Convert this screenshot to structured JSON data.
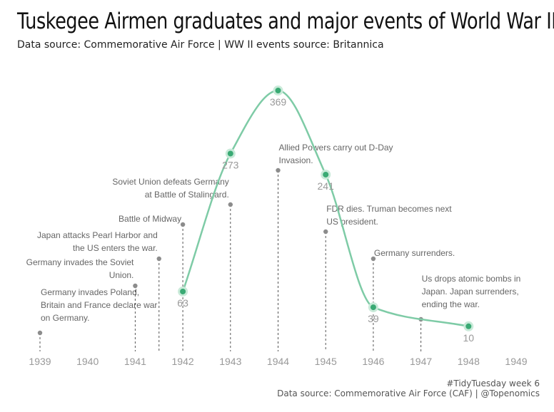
{
  "header": {
    "title": "Tuskegee Airmen graduates and major events of World War II",
    "subtitle": "Data source: Commemorative Air Force | WW II events source: Britannica"
  },
  "caption": {
    "line1": "#TidyTuesday week 6",
    "line2": "Data source: Commemorative Air Force (CAF) | @Topenomics"
  },
  "colors": {
    "line": "#7ecba6",
    "point": "#3aaa74",
    "halo": "#c9ead9",
    "event": "#8c8c8c",
    "axis_text": "#999999",
    "event_text": "#666666"
  },
  "chart_data": {
    "type": "line",
    "title": "Tuskegee Airmen graduates and major events of World War II",
    "subtitle": "Data source: Commemorative Air Force | WW II events source: Britannica",
    "xlim": [
      1939,
      1949
    ],
    "x_ticks": [
      "1939",
      "1940",
      "1941",
      "1942",
      "1943",
      "1944",
      "1945",
      "1946",
      "1947",
      "1948",
      "1949"
    ],
    "ylim": [
      0,
      380
    ],
    "grid": false,
    "series": [
      {
        "x": [
          1942,
          1943,
          1944,
          1945,
          1946,
          1948
        ],
        "values": [
          63,
          273,
          369,
          241,
          39,
          10
        ],
        "labels": [
          "63",
          "273",
          "369",
          "241",
          "39",
          "10"
        ]
      }
    ],
    "events": [
      {
        "x": 1939,
        "text": "Germany invades Poland, Britain and France declare war on Germany.",
        "lines": [
          "Germany invades Poland,",
          "Britain and France declare war",
          "on Germany."
        ],
        "align": "start"
      },
      {
        "x": 1941,
        "text": "Germany invades the Soviet Union.",
        "lines": [
          "Germany invades the Soviet",
          "Union."
        ],
        "align": "end"
      },
      {
        "x": 1941.5,
        "text": "Japan attacks Pearl Harbor and the US enters the war.",
        "lines": [
          "Japan attacks Pearl Harbor and",
          "the US enters the war."
        ],
        "align": "end"
      },
      {
        "x": 1942,
        "text": "Battle of Midway",
        "lines": [
          "Battle of Midway"
        ],
        "align": "end"
      },
      {
        "x": 1943,
        "text": "Soviet Union defeats Germany at Battle of Stalingard.",
        "lines": [
          "Soviet Union defeats Germany",
          "at Battle of Stalingard."
        ],
        "align": "end"
      },
      {
        "x": 1944,
        "text": "Allied Powers carry out D-Day Invasion.",
        "lines": [
          "Allied Powers carry out D-Day",
          "Invasion."
        ],
        "align": "start"
      },
      {
        "x": 1945,
        "text": "FDR dies. Truman becomes next US president.",
        "lines": [
          "FDR dies. Truman becomes next",
          "US president."
        ],
        "align": "start"
      },
      {
        "x": 1946,
        "text": "Germany surrenders.",
        "lines": [
          "Germany surrenders."
        ],
        "align": "start"
      },
      {
        "x": 1947,
        "text": "Us drops atomic bombs in Japan. Japan surrenders, ending the war.",
        "lines": [
          "Us drops atomic bombs in",
          "Japan. Japan surrenders,",
          "ending the war."
        ],
        "align": "start"
      }
    ]
  }
}
